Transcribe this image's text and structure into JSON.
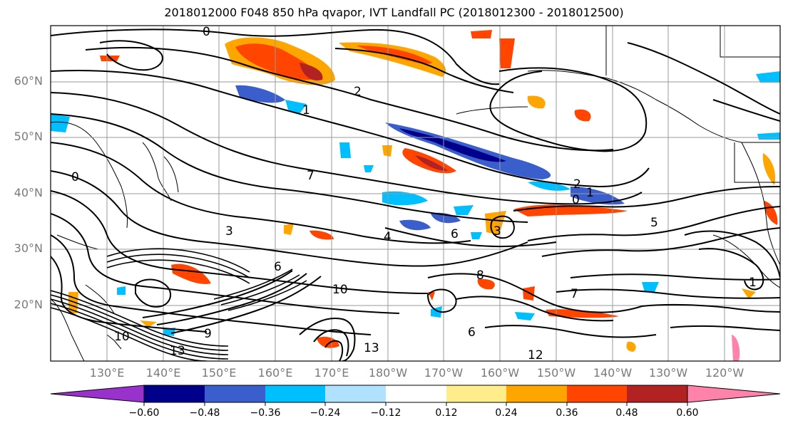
{
  "title": "2018012000 F048 850 hPa qvapor, IVT Landfall PC (2018012300 - 2018012500)",
  "lat_labels": [
    "60°N",
    "50°N",
    "40°N",
    "30°N",
    "20°N"
  ],
  "lon_labels": [
    "130°E",
    "140°E",
    "150°E",
    "160°E",
    "170°E",
    "180°W",
    "170°W",
    "160°W",
    "150°W",
    "140°W",
    "130°W",
    "120°W"
  ],
  "contour_labels": [
    "0",
    "1",
    "2",
    "3",
    "4",
    "5",
    "6",
    "7",
    "8",
    "9",
    "10",
    "12",
    "13"
  ],
  "colorbar": {
    "tick_labels": [
      "−0.60",
      "−0.48",
      "−0.36",
      "−0.24",
      "−0.12",
      "0.12",
      "0.24",
      "0.36",
      "0.48",
      "0.60"
    ],
    "colors": [
      "#9932cc",
      "#00008b",
      "#3a5fcd",
      "#00bfff",
      "#b0e2ff",
      "#ffffff",
      "#ffec8b",
      "#ffa500",
      "#ff4500",
      "#b22222",
      "#ff82ab"
    ]
  }
}
